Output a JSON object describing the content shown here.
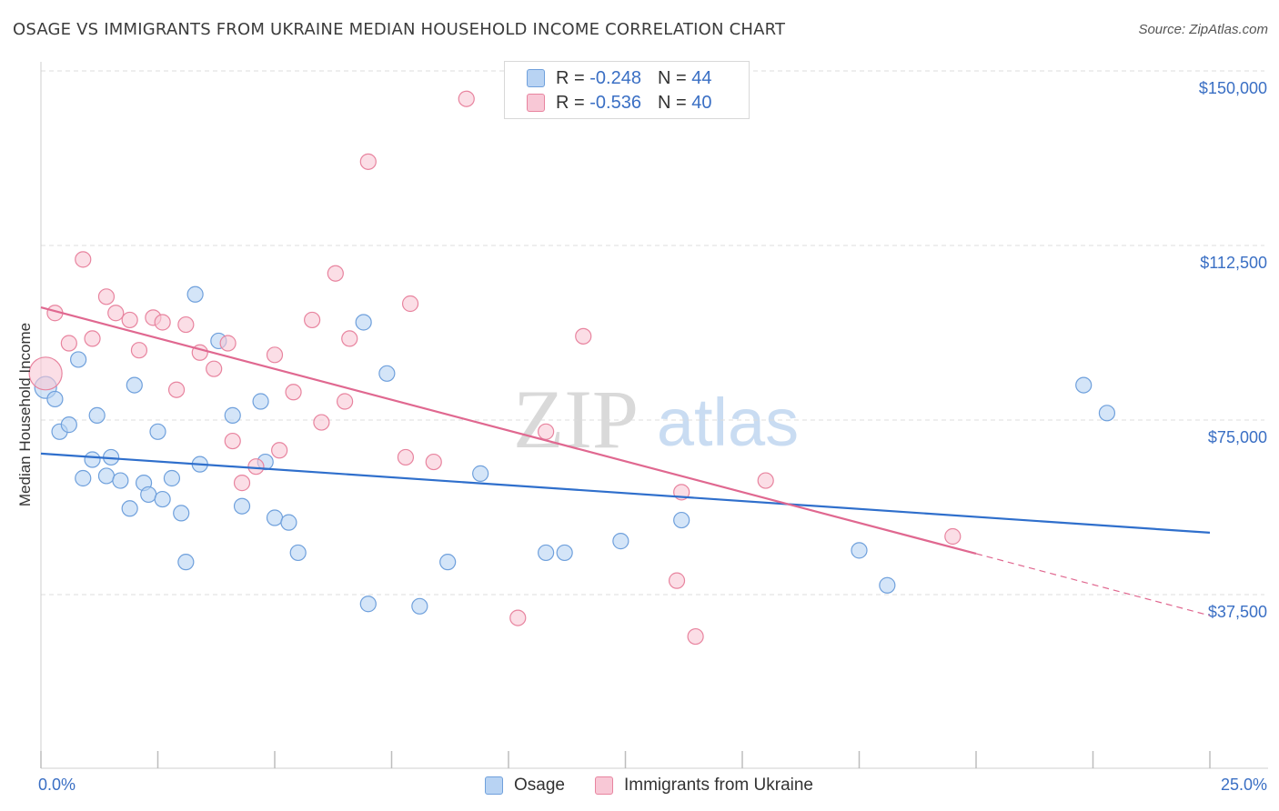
{
  "title": "OSAGE VS IMMIGRANTS FROM UKRAINE MEDIAN HOUSEHOLD INCOME CORRELATION CHART",
  "source": "Source: ZipAtlas.com",
  "watermark": {
    "left": "ZIP",
    "right": "atlas"
  },
  "legend_top": {
    "rows": [
      {
        "r_label": "R = ",
        "r_value": "-0.248",
        "n_label": "N = ",
        "n_value": "44"
      },
      {
        "r_label": "R = ",
        "r_value": "-0.536",
        "n_label": "N = ",
        "n_value": "40"
      }
    ]
  },
  "colors": {
    "osage_fill": "#b8d3f3",
    "osage_stroke": "#6fa0dc",
    "osage_line": "#2f6fcc",
    "ukraine_fill": "#f8c8d6",
    "ukraine_stroke": "#e8849f",
    "ukraine_line": "#e06890",
    "tick_label": "#3a6fc4",
    "grid": "#dcdcdc"
  },
  "chart_data": {
    "type": "scatter",
    "title": "OSAGE VS IMMIGRANTS FROM UKRAINE MEDIAN HOUSEHOLD INCOME CORRELATION CHART",
    "xlabel": "",
    "ylabel": "Median Household Income",
    "xlim": [
      0,
      25
    ],
    "ylim": [
      0,
      155000
    ],
    "x_tick_labels": [
      "0.0%",
      "25.0%"
    ],
    "y_ticks": [
      37500,
      75000,
      112500,
      150000
    ],
    "y_tick_labels": [
      "$37,500",
      "$75,000",
      "$112,500",
      "$150,000"
    ],
    "grid": true,
    "legend_position": "bottom",
    "series": [
      {
        "name": "Osage",
        "points": [
          [
            0.1,
            82000
          ],
          [
            0.3,
            79500
          ],
          [
            0.4,
            72500
          ],
          [
            0.6,
            74000
          ],
          [
            0.8,
            88000
          ],
          [
            0.9,
            62500
          ],
          [
            1.1,
            66500
          ],
          [
            1.2,
            76000
          ],
          [
            1.4,
            63000
          ],
          [
            1.5,
            67000
          ],
          [
            1.7,
            62000
          ],
          [
            1.9,
            56000
          ],
          [
            2.0,
            82500
          ],
          [
            2.2,
            61500
          ],
          [
            2.3,
            59000
          ],
          [
            2.5,
            72500
          ],
          [
            2.6,
            58000
          ],
          [
            2.8,
            62500
          ],
          [
            3.0,
            55000
          ],
          [
            3.1,
            44500
          ],
          [
            3.3,
            102000
          ],
          [
            3.4,
            65500
          ],
          [
            3.8,
            92000
          ],
          [
            4.1,
            76000
          ],
          [
            4.3,
            56500
          ],
          [
            4.7,
            79000
          ],
          [
            4.8,
            66000
          ],
          [
            5.0,
            54000
          ],
          [
            5.3,
            53000
          ],
          [
            5.5,
            46500
          ],
          [
            6.9,
            96000
          ],
          [
            7.0,
            35500
          ],
          [
            7.4,
            85000
          ],
          [
            8.1,
            35000
          ],
          [
            8.7,
            44500
          ],
          [
            9.4,
            63500
          ],
          [
            10.8,
            46500
          ],
          [
            11.2,
            46500
          ],
          [
            12.4,
            49000
          ],
          [
            13.7,
            53500
          ],
          [
            17.5,
            47000
          ],
          [
            18.1,
            39500
          ],
          [
            22.3,
            82500
          ],
          [
            22.8,
            76500
          ]
        ]
      },
      {
        "name": "Immigrants from Ukraine",
        "points": [
          [
            0.1,
            85000
          ],
          [
            0.3,
            98000
          ],
          [
            0.6,
            91500
          ],
          [
            0.9,
            109500
          ],
          [
            1.1,
            92500
          ],
          [
            1.4,
            101500
          ],
          [
            1.6,
            98000
          ],
          [
            1.9,
            96500
          ],
          [
            2.1,
            90000
          ],
          [
            2.4,
            97000
          ],
          [
            2.6,
            96000
          ],
          [
            2.9,
            81500
          ],
          [
            3.1,
            95500
          ],
          [
            3.4,
            89500
          ],
          [
            3.7,
            86000
          ],
          [
            4.0,
            91500
          ],
          [
            4.1,
            70500
          ],
          [
            4.3,
            61500
          ],
          [
            4.6,
            65000
          ],
          [
            5.0,
            89000
          ],
          [
            5.1,
            68500
          ],
          [
            5.4,
            81000
          ],
          [
            5.8,
            96500
          ],
          [
            6.0,
            74500
          ],
          [
            6.3,
            106500
          ],
          [
            6.5,
            79000
          ],
          [
            6.6,
            92500
          ],
          [
            7.0,
            130500
          ],
          [
            7.8,
            67000
          ],
          [
            7.9,
            100000
          ],
          [
            8.4,
            66000
          ],
          [
            9.1,
            144000
          ],
          [
            10.2,
            32500
          ],
          [
            10.8,
            72500
          ],
          [
            11.6,
            93000
          ],
          [
            13.6,
            40500
          ],
          [
            13.7,
            59500
          ],
          [
            14.0,
            28500
          ],
          [
            15.5,
            62000
          ],
          [
            19.5,
            50000
          ]
        ]
      }
    ],
    "trend_lines": [
      {
        "series": "Osage",
        "x": [
          0,
          25
        ],
        "y": [
          67800,
          50800
        ],
        "style": "solid"
      },
      {
        "series": "Immigrants from Ukraine",
        "x": [
          0,
          20
        ],
        "y": [
          99200,
          46300
        ],
        "style": "solid"
      },
      {
        "series": "Immigrants from Ukraine",
        "x": [
          20,
          25
        ],
        "y": [
          46300,
          33000
        ],
        "style": "dashed"
      }
    ]
  },
  "legend_bottom": {
    "items": [
      "Osage",
      "Immigrants from Ukraine"
    ]
  }
}
